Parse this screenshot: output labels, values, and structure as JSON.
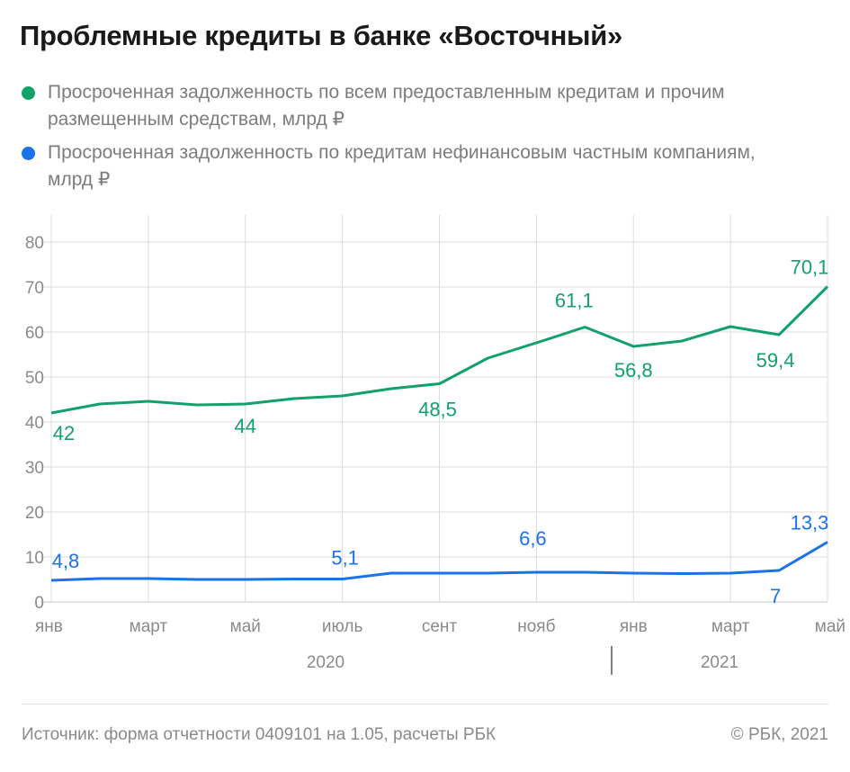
{
  "colors": {
    "green": "#12a06b",
    "blue": "#1a73e8",
    "grid": "#dcdcdc"
  },
  "footer": {
    "source": "Источник: форма отчетности 0409101 на 1.05, расчеты РБК",
    "copyright": "© РБК, 2021"
  },
  "chart_data": {
    "type": "line",
    "title": "Проблемные кредиты в банке «Восточный»",
    "x": [
      "2020-01",
      "2020-02",
      "2020-03",
      "2020-04",
      "2020-05",
      "2020-06",
      "2020-07",
      "2020-08",
      "2020-09",
      "2020-10",
      "2020-11",
      "2020-12",
      "2021-01",
      "2021-02",
      "2021-03",
      "2021-04",
      "2021-05"
    ],
    "x_tick_labels": [
      "янв",
      "март",
      "май",
      "июль",
      "сент",
      "нояб",
      "янв",
      "март",
      "май"
    ],
    "year_labels": [
      "2020",
      "2021"
    ],
    "ylim": [
      0,
      80
    ],
    "y_ticks": [
      0,
      10,
      20,
      30,
      40,
      50,
      60,
      70,
      80
    ],
    "grid": true,
    "legend": "top",
    "series": [
      {
        "name": "Просроченная задолженность по всем предоставленным кредитам и прочим размещенным средствам, млрд ₽",
        "color": "#12a06b",
        "values": [
          42,
          44,
          44.6,
          43.8,
          44,
          45.2,
          45.8,
          47.4,
          48.5,
          54.2,
          57.6,
          61.1,
          56.8,
          58,
          61.2,
          59.4,
          70.1
        ],
        "data_labels": [
          {
            "index": 0,
            "text": "42"
          },
          {
            "index": 4,
            "text": "44"
          },
          {
            "index": 8,
            "text": "48,5"
          },
          {
            "index": 11,
            "text": "61,1"
          },
          {
            "index": 12,
            "text": "56,8"
          },
          {
            "index": 15,
            "text": "59,4"
          },
          {
            "index": 16,
            "text": "70,1"
          }
        ]
      },
      {
        "name": "Просроченная задолженность по кредитам нефинансовым частным компаниям, млрд ₽",
        "color": "#1a73e8",
        "values": [
          4.8,
          5.2,
          5.2,
          5,
          5,
          5.1,
          5.1,
          6.4,
          6.4,
          6.4,
          6.6,
          6.6,
          6.4,
          6.3,
          6.4,
          7,
          13.3
        ],
        "data_labels": [
          {
            "index": 0,
            "text": "4,8"
          },
          {
            "index": 6,
            "text": "5,1"
          },
          {
            "index": 10,
            "text": "6,6"
          },
          {
            "index": 15,
            "text": "7"
          },
          {
            "index": 16,
            "text": "13,3"
          }
        ]
      }
    ]
  }
}
